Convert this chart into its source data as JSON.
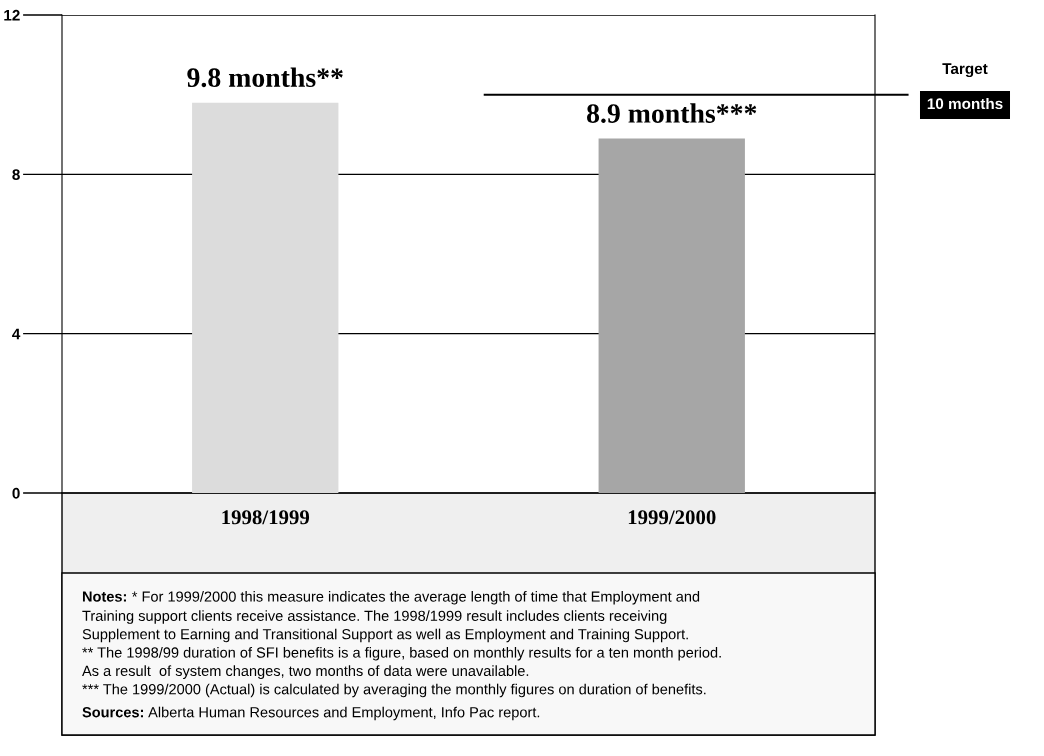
{
  "chart_data": {
    "type": "bar",
    "categories": [
      "1998/1999",
      "1999/2000"
    ],
    "values": [
      9.8,
      8.9
    ],
    "colors": [
      "#dcdcdc",
      "#a6a6a6"
    ],
    "value_labels": [
      "9.8 months**",
      "8.9 months***"
    ],
    "ylim": [
      0,
      12
    ],
    "yticks": [
      0,
      4,
      8,
      12
    ],
    "grid": "y",
    "ref_lines": [
      {
        "axis": "y",
        "value": 10,
        "label": "10 months",
        "color": "#000000"
      }
    ],
    "annotations": [
      "Target",
      "Notes: * For 1999/2000 this measure indicates the average length of time that Employment and\nTraining support clients receive assistance. The 1998/1999 result includes clients receiving\nSupplement to Earning and Transitional Support as well as Employment and Training Support.\n** The 1998/99 duration of SFI benefits is a figure, based on monthly results for a ten month period.\nAs a result  of system changes, two months of data were unavailable.\n*** The 1999/2000 (Actual) is calculated by averaging the monthly figures on duration of benefits.",
      "Sources: Alberta Human Resources and Employment, Info Pac report."
    ]
  }
}
